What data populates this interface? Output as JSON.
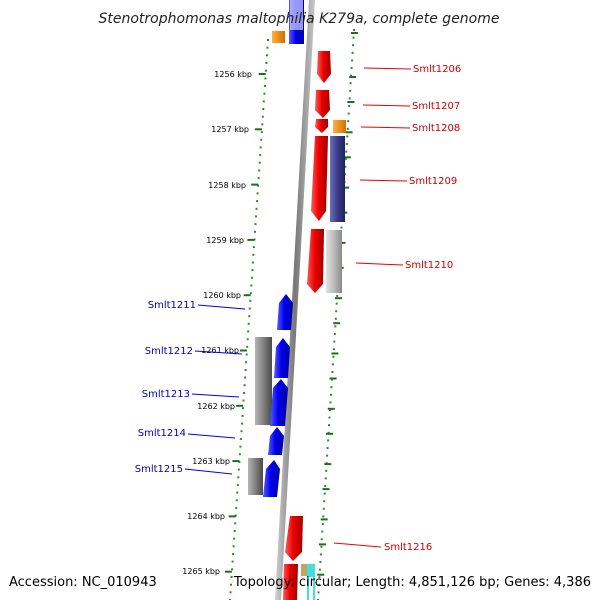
{
  "title": "Stenotrophomonas maltophilia K279a, complete genome",
  "accession_text": "Accession: NC_010943",
  "topology_text": "Topology: circular; Length: 4,851,126 bp; Genes: 4,386",
  "colors": {
    "title": "#222222",
    "backbone_dark": "#777777",
    "backbone_light": "#c8c8c8",
    "dots": "#2f8a2f",
    "ticks": "#1e6e1e",
    "forward_gene": "#ee0000",
    "reverse_gene": "#0000ee",
    "forward_label": "#cc0000",
    "reverse_label": "#0000cc",
    "orange_feature": "#f08a00",
    "navy_feature": "#3a3a8a",
    "grey_feature": "#8c8c8c",
    "light_grey_feature": "#bbbbbb",
    "cyan_feature": "#40e0e0",
    "tan_feature": "#c8a060"
  },
  "ticks": [
    {
      "label": "1256 kbp"
    },
    {
      "label": "1257 kbp"
    },
    {
      "label": "1258 kbp"
    },
    {
      "label": "1259 kbp"
    },
    {
      "label": "1260 kbp"
    },
    {
      "label": "1261 kbp"
    },
    {
      "label": "1262 kbp"
    },
    {
      "label": "1263 kbp"
    },
    {
      "label": "1264 kbp"
    },
    {
      "label": "1265 kbp"
    }
  ],
  "genes_forward": [
    {
      "label": "Smlt1206"
    },
    {
      "label": "Smlt1207"
    },
    {
      "label": "Smlt1208"
    },
    {
      "label": "Smlt1209"
    },
    {
      "label": "Smlt1210"
    },
    {
      "label": "Smlt1216"
    }
  ],
  "genes_reverse": [
    {
      "label": "Smlt1211"
    },
    {
      "label": "Smlt1212"
    },
    {
      "label": "Smlt1213"
    },
    {
      "label": "Smlt1214"
    },
    {
      "label": "Smlt1215"
    }
  ]
}
